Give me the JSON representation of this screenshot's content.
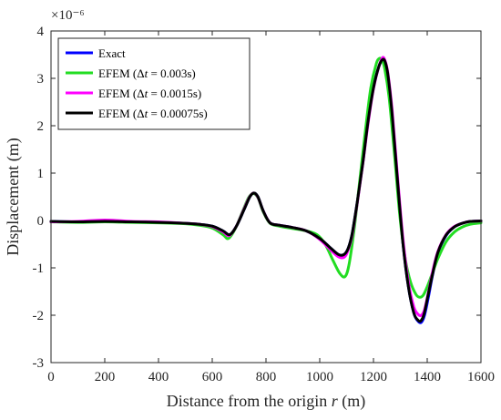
{
  "chart_data": {
    "type": "line",
    "xlabel": "Distance from the origin r (m)",
    "ylabel": "Displacement (m)",
    "exponent_label": "×10⁻⁶",
    "xlim": [
      0,
      1600
    ],
    "ylim": [
      -3,
      4
    ],
    "xticks": [
      0,
      200,
      400,
      600,
      800,
      1000,
      1200,
      1400,
      1600
    ],
    "yticks": [
      -3,
      -2,
      -1,
      0,
      1,
      2,
      3,
      4
    ],
    "y_scale_note": "values in units of 1e-6 m",
    "legend_position": "top-left",
    "series": [
      {
        "name": "Exact",
        "color": "#0000ff",
        "x": [
          0,
          100,
          200,
          300,
          400,
          500,
          550,
          600,
          640,
          665,
          690,
          720,
          740,
          755,
          770,
          790,
          815,
          850,
          900,
          950,
          1000,
          1040,
          1070,
          1090,
          1105,
          1120,
          1140,
          1160,
          1180,
          1200,
          1220,
          1235,
          1245,
          1255,
          1270,
          1290,
          1310,
          1330,
          1350,
          1365,
          1378,
          1390,
          1405,
          1420,
          1440,
          1470,
          1500,
          1530,
          1560,
          1600
        ],
        "values": [
          -0.02,
          -0.03,
          -0.02,
          -0.03,
          -0.04,
          -0.06,
          -0.08,
          -0.12,
          -0.22,
          -0.3,
          -0.12,
          0.25,
          0.5,
          0.58,
          0.5,
          0.2,
          -0.05,
          -0.1,
          -0.15,
          -0.22,
          -0.38,
          -0.58,
          -0.72,
          -0.72,
          -0.6,
          -0.3,
          0.4,
          1.2,
          2.1,
          2.8,
          3.25,
          3.38,
          3.3,
          3.0,
          2.2,
          0.8,
          -0.5,
          -1.4,
          -1.95,
          -2.12,
          -2.15,
          -2.0,
          -1.6,
          -1.15,
          -0.68,
          -0.32,
          -0.14,
          -0.06,
          -0.02,
          -0.01
        ]
      },
      {
        "name": "EFEM (Δt = 0.003s)",
        "color": "#22dd22",
        "x": [
          0,
          100,
          200,
          300,
          400,
          500,
          550,
          600,
          640,
          660,
          685,
          715,
          735,
          752,
          770,
          790,
          815,
          850,
          900,
          950,
          990,
          1020,
          1050,
          1075,
          1095,
          1110,
          1130,
          1150,
          1170,
          1190,
          1210,
          1222,
          1232,
          1242,
          1258,
          1278,
          1298,
          1318,
          1338,
          1358,
          1372,
          1385,
          1400,
          1420,
          1440,
          1470,
          1500,
          1530,
          1560,
          1600
        ],
        "values": [
          -0.03,
          -0.04,
          -0.03,
          -0.04,
          -0.05,
          -0.07,
          -0.1,
          -0.16,
          -0.3,
          -0.38,
          -0.18,
          0.22,
          0.48,
          0.57,
          0.48,
          0.18,
          -0.06,
          -0.12,
          -0.17,
          -0.22,
          -0.3,
          -0.5,
          -0.85,
          -1.12,
          -1.18,
          -0.9,
          -0.1,
          0.9,
          1.9,
          2.8,
          3.3,
          3.42,
          3.38,
          3.2,
          2.6,
          1.4,
          0.1,
          -0.8,
          -1.3,
          -1.56,
          -1.62,
          -1.58,
          -1.4,
          -1.1,
          -0.8,
          -0.45,
          -0.25,
          -0.14,
          -0.08,
          -0.05
        ]
      },
      {
        "name": "EFEM (Δt = 0.0015s)",
        "color": "#ff00ff",
        "x": [
          0,
          100,
          200,
          300,
          400,
          500,
          550,
          600,
          640,
          663,
          688,
          718,
          738,
          754,
          770,
          790,
          815,
          850,
          900,
          950,
          1000,
          1040,
          1068,
          1090,
          1104,
          1120,
          1140,
          1160,
          1180,
          1200,
          1220,
          1234,
          1244,
          1254,
          1270,
          1290,
          1310,
          1330,
          1350,
          1366,
          1378,
          1390,
          1405,
          1420,
          1440,
          1470,
          1500,
          1530,
          1560,
          1600
        ],
        "values": [
          -0.03,
          -0.02,
          0.01,
          -0.02,
          -0.03,
          -0.06,
          -0.08,
          -0.13,
          -0.24,
          -0.32,
          -0.14,
          0.24,
          0.49,
          0.58,
          0.49,
          0.2,
          -0.05,
          -0.1,
          -0.15,
          -0.22,
          -0.4,
          -0.62,
          -0.76,
          -0.78,
          -0.65,
          -0.34,
          0.38,
          1.18,
          2.05,
          2.78,
          3.25,
          3.44,
          3.36,
          3.1,
          2.3,
          0.9,
          -0.4,
          -1.3,
          -1.82,
          -1.98,
          -2.0,
          -1.88,
          -1.5,
          -1.08,
          -0.65,
          -0.3,
          -0.13,
          -0.06,
          -0.02,
          -0.01
        ]
      },
      {
        "name": "EFEM (Δt = 0.00075s)",
        "color": "#000000",
        "x": [
          0,
          100,
          200,
          300,
          400,
          500,
          550,
          600,
          640,
          665,
          690,
          720,
          740,
          755,
          770,
          790,
          815,
          850,
          900,
          950,
          1000,
          1040,
          1070,
          1090,
          1105,
          1120,
          1140,
          1160,
          1180,
          1200,
          1220,
          1235,
          1245,
          1255,
          1270,
          1290,
          1310,
          1330,
          1350,
          1365,
          1376,
          1388,
          1403,
          1420,
          1440,
          1470,
          1500,
          1530,
          1560,
          1600
        ],
        "values": [
          -0.02,
          -0.03,
          -0.02,
          -0.03,
          -0.04,
          -0.06,
          -0.08,
          -0.12,
          -0.22,
          -0.3,
          -0.12,
          0.25,
          0.5,
          0.58,
          0.5,
          0.2,
          -0.05,
          -0.1,
          -0.15,
          -0.22,
          -0.38,
          -0.58,
          -0.72,
          -0.72,
          -0.6,
          -0.3,
          0.4,
          1.2,
          2.1,
          2.8,
          3.25,
          3.4,
          3.32,
          3.02,
          2.2,
          0.8,
          -0.5,
          -1.4,
          -1.95,
          -2.1,
          -2.12,
          -1.98,
          -1.58,
          -1.13,
          -0.67,
          -0.31,
          -0.14,
          -0.06,
          -0.02,
          -0.01
        ]
      }
    ],
    "legend": [
      {
        "prefix": "Exact",
        "symbol": "",
        "rest": "",
        "color": "#0000ff"
      },
      {
        "prefix": "EFEM (Δ",
        "symbol": "t",
        "rest": " = 0.003s)",
        "color": "#22dd22"
      },
      {
        "prefix": "EFEM (Δ",
        "symbol": "t",
        "rest": " = 0.0015s)",
        "color": "#ff00ff"
      },
      {
        "prefix": "EFEM (Δ",
        "symbol": "t",
        "rest": " = 0.00075s)",
        "color": "#000000"
      }
    ]
  }
}
